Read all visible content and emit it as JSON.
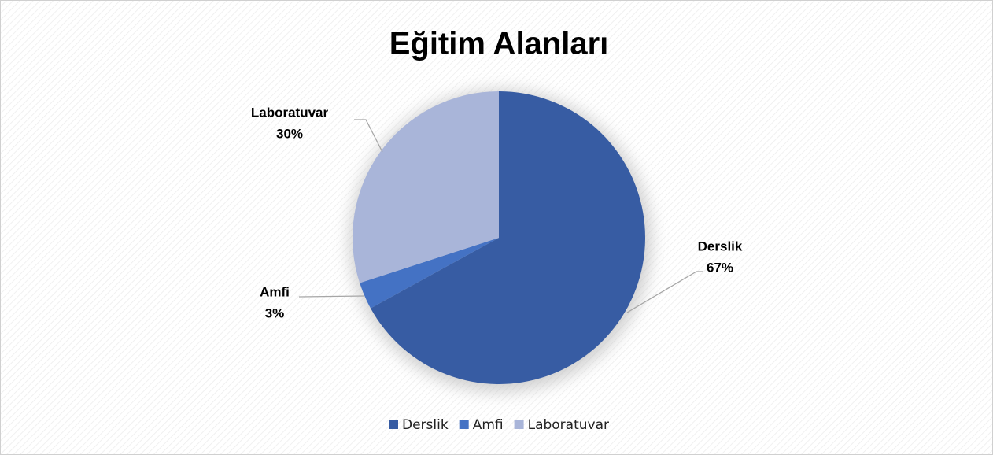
{
  "chart_data": {
    "type": "pie",
    "title": "Eğitim Alanları",
    "categories": [
      "Derslik",
      "Amfi",
      "Laboratuvar"
    ],
    "values": [
      67,
      3,
      30
    ],
    "value_labels": [
      "67%",
      "3%",
      "30%"
    ],
    "colors": [
      "#375ca3",
      "#4472c4",
      "#a9b5d9"
    ],
    "legend": "bottom"
  }
}
